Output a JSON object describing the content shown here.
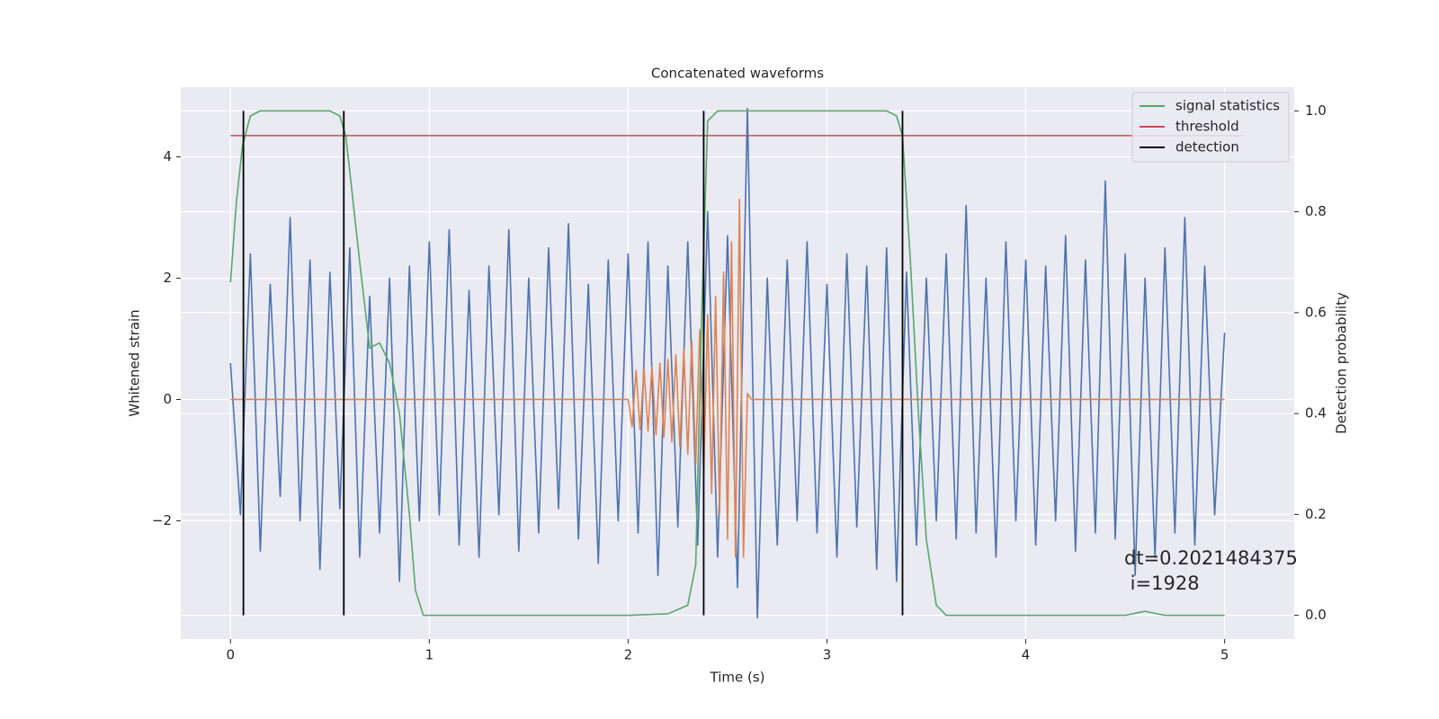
{
  "chart_data": {
    "type": "line",
    "title": "Concatenated waveforms",
    "x_label": "Time (s)",
    "y_label": "Whitened strain",
    "y2_label": "Detection probability",
    "xlim": [
      -0.25,
      5.35
    ],
    "ylim": [
      -3.95,
      5.15
    ],
    "y2lim": [
      -0.047,
      1.047
    ],
    "xticks": [
      0,
      1,
      2,
      3,
      4,
      5
    ],
    "yticks": [
      {
        "value": -2,
        "label": "−2"
      },
      0,
      2,
      4
    ],
    "y2ticks": [
      {
        "value": 0,
        "label": "0.0"
      },
      0.2,
      0.4,
      0.6,
      0.8,
      {
        "value": 1,
        "label": "1.0"
      }
    ],
    "grid": true,
    "legend": "upper right",
    "background": "#eaeaf2",
    "series": [
      {
        "color": "#4c72b0",
        "axis": "y",
        "x": [
          0,
          0.05,
          0.1,
          0.15,
          0.2,
          0.25,
          0.3,
          0.35,
          0.4,
          0.45,
          0.5,
          0.55,
          0.6,
          0.65,
          0.7,
          0.75,
          0.8,
          0.85,
          0.9,
          0.95,
          1,
          1.05,
          1.1,
          1.15,
          1.2,
          1.25,
          1.3,
          1.35,
          1.4,
          1.45,
          1.5,
          1.55,
          1.6,
          1.65,
          1.7,
          1.75,
          1.8,
          1.85,
          1.9,
          1.95,
          2,
          2.05,
          2.1,
          2.15,
          2.2,
          2.25,
          2.3,
          2.35,
          2.4,
          2.45,
          2.5,
          2.55,
          2.6,
          2.65,
          2.7,
          2.75,
          2.8,
          2.85,
          2.9,
          2.95,
          3,
          3.05,
          3.1,
          3.15,
          3.2,
          3.25,
          3.3,
          3.35,
          3.4,
          3.45,
          3.5,
          3.55,
          3.6,
          3.65,
          3.7,
          3.75,
          3.8,
          3.85,
          3.9,
          3.95,
          4,
          4.05,
          4.1,
          4.15,
          4.2,
          4.25,
          4.3,
          4.35,
          4.4,
          4.45,
          4.5,
          4.55,
          4.6,
          4.65,
          4.7,
          4.75,
          4.8,
          4.85,
          4.9,
          4.95,
          5
        ],
        "values": [
          0.6,
          -1.9,
          2.4,
          -2.5,
          1.9,
          -1.6,
          3.0,
          -2.0,
          2.3,
          -2.8,
          2.1,
          -1.8,
          2.5,
          -2.6,
          1.7,
          -2.2,
          2.0,
          -3.0,
          2.2,
          -2.0,
          2.6,
          -1.9,
          2.8,
          -2.4,
          1.8,
          -2.6,
          2.2,
          -1.9,
          2.8,
          -2.5,
          2.0,
          -2.2,
          2.5,
          -1.8,
          2.9,
          -2.3,
          1.9,
          -2.7,
          2.3,
          -2.0,
          2.4,
          -2.2,
          2.6,
          -2.9,
          2.2,
          -2.1,
          2.6,
          -2.4,
          3.1,
          -2.6,
          2.7,
          -3.1,
          4.8,
          -3.6,
          2.0,
          -2.4,
          2.3,
          -2.0,
          2.6,
          -2.2,
          1.9,
          -2.6,
          2.4,
          -2.1,
          2.2,
          -2.8,
          2.5,
          -3.0,
          2.1,
          -2.4,
          2.0,
          -2.0,
          2.4,
          -2.3,
          3.2,
          -2.2,
          2.0,
          -2.6,
          2.6,
          -2.0,
          2.3,
          -2.4,
          2.2,
          -2.0,
          2.7,
          -2.5,
          2.3,
          -2.2,
          3.6,
          -2.3,
          2.4,
          -2.9,
          2.0,
          -2.6,
          2.5,
          -2.2,
          3.0,
          -2.4,
          2.2,
          -1.9,
          1.1
        ]
      },
      {
        "color": "#dd8452",
        "axis": "y",
        "x": [
          0,
          2.0,
          2.02,
          2.04,
          2.06,
          2.08,
          2.1,
          2.12,
          2.14,
          2.16,
          2.18,
          2.2,
          2.22,
          2.24,
          2.26,
          2.28,
          2.3,
          2.32,
          2.34,
          2.36,
          2.38,
          2.4,
          2.42,
          2.44,
          2.46,
          2.48,
          2.5,
          2.52,
          2.54,
          2.56,
          2.58,
          2.6,
          2.62,
          2.7,
          5.0
        ],
        "values": [
          0,
          0,
          -0.45,
          0.48,
          -0.5,
          0.5,
          -0.52,
          0.55,
          -0.58,
          0.6,
          -0.62,
          0.66,
          -0.7,
          0.74,
          -0.78,
          0.83,
          -0.9,
          0.97,
          -1.05,
          1.15,
          -1.25,
          1.4,
          -1.55,
          1.7,
          -1.9,
          2.1,
          -2.3,
          2.6,
          -2.6,
          3.3,
          -2.6,
          0.1,
          0,
          0,
          0
        ]
      },
      {
        "name": "signal statistics",
        "color": "#55a868",
        "axis": "y2",
        "x": [
          0,
          0.03,
          0.06,
          0.1,
          0.15,
          0.2,
          0.5,
          0.55,
          0.58,
          0.6,
          0.65,
          0.7,
          0.75,
          0.8,
          0.85,
          0.9,
          0.93,
          0.97,
          1.0,
          2.0,
          2.2,
          2.3,
          2.34,
          2.37,
          2.4,
          2.45,
          2.5,
          3.3,
          3.35,
          3.38,
          3.42,
          3.46,
          3.5,
          3.55,
          3.6,
          4.5,
          4.6,
          4.7,
          5.0
        ],
        "values": [
          0.66,
          0.82,
          0.93,
          0.99,
          1.0,
          1.0,
          1.0,
          0.99,
          0.95,
          0.88,
          0.7,
          0.53,
          0.54,
          0.5,
          0.4,
          0.2,
          0.05,
          0.0,
          0.0,
          0.0,
          0.003,
          0.02,
          0.1,
          0.6,
          0.98,
          1.0,
          1.0,
          1.0,
          0.99,
          0.95,
          0.7,
          0.4,
          0.15,
          0.02,
          0.0,
          0.0,
          0.008,
          0.0,
          0.0
        ]
      },
      {
        "name": "threshold",
        "color": "#c44e52",
        "axis": "y2",
        "x": [
          0,
          5.1
        ],
        "values": [
          0.951,
          0.951
        ]
      }
    ],
    "vlines": {
      "name": "detection",
      "color": "#000000",
      "axis": "y2",
      "x": [
        0.065,
        0.57,
        2.38,
        3.38
      ],
      "ymin": 0,
      "ymax": 1
    },
    "annotations": [
      "dt=0.2021484375",
      " i=1928"
    ]
  }
}
